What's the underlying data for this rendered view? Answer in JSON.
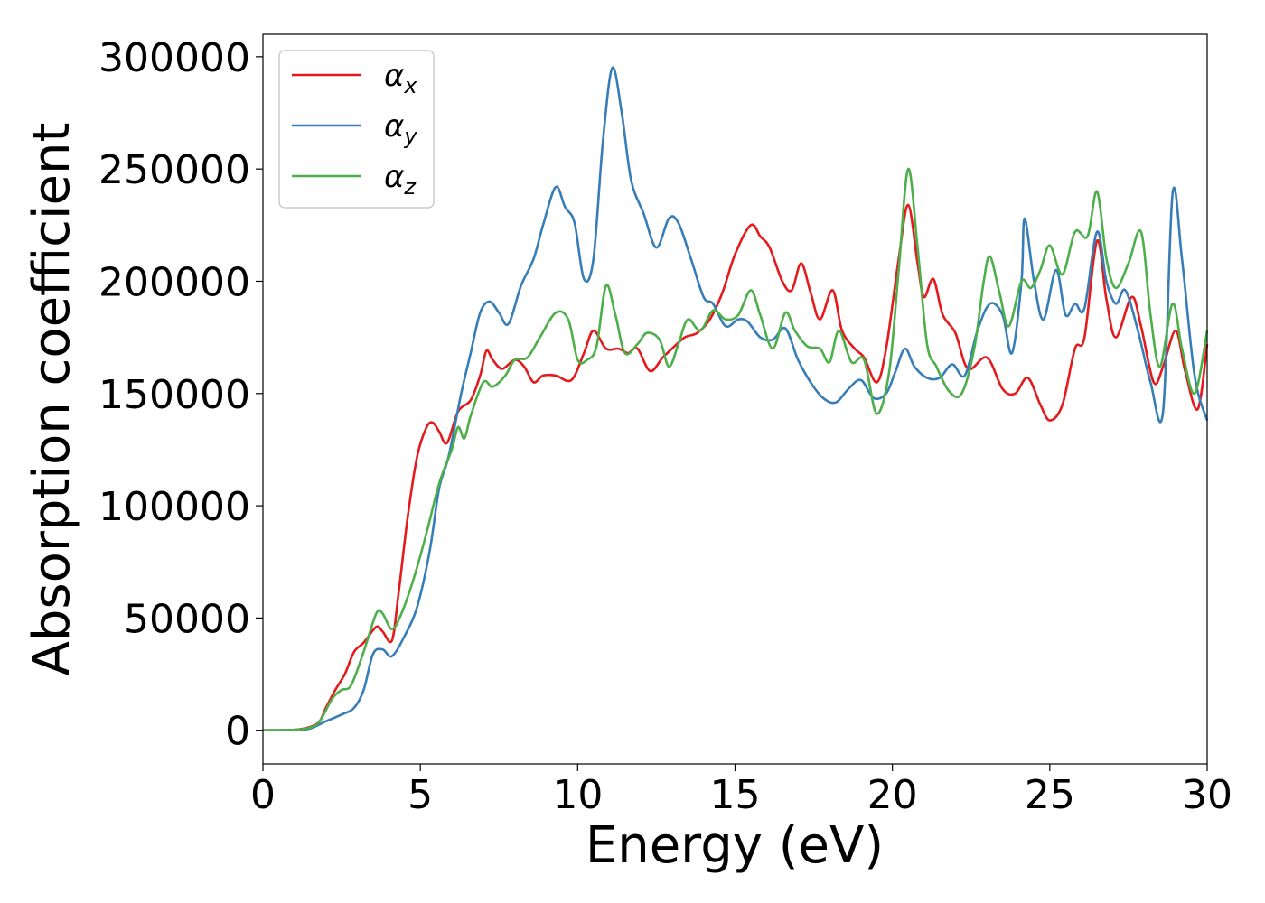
{
  "chart_data": {
    "type": "line",
    "xlabel": "Energy (eV)",
    "ylabel": "Absorption coefficient",
    "xlim": [
      0,
      30
    ],
    "ylim": [
      -15000,
      310000
    ],
    "xticks": [
      0,
      5,
      10,
      15,
      20,
      25,
      30
    ],
    "yticks": [
      0,
      50000,
      100000,
      150000,
      200000,
      250000,
      300000
    ],
    "grid": false,
    "legend_position": "top-left",
    "series": [
      {
        "name": "α",
        "subscript": "x",
        "color": "#e41a1c",
        "points": [
          [
            0,
            0
          ],
          [
            1,
            200
          ],
          [
            1.5,
            1500
          ],
          [
            1.8,
            4000
          ],
          [
            2,
            10000
          ],
          [
            2.3,
            18000
          ],
          [
            2.6,
            25000
          ],
          [
            2.9,
            35000
          ],
          [
            3.2,
            39000
          ],
          [
            3.6,
            46000
          ],
          [
            3.8,
            44000
          ],
          [
            4.1,
            40000
          ],
          [
            4.3,
            60000
          ],
          [
            4.6,
            95000
          ],
          [
            4.9,
            122000
          ],
          [
            5.2,
            135000
          ],
          [
            5.4,
            137000
          ],
          [
            5.6,
            133000
          ],
          [
            5.85,
            128000
          ],
          [
            6.2,
            142000
          ],
          [
            6.6,
            147000
          ],
          [
            6.9,
            158000
          ],
          [
            7.1,
            169000
          ],
          [
            7.3,
            165000
          ],
          [
            7.6,
            161000
          ],
          [
            8,
            165000
          ],
          [
            8.3,
            162000
          ],
          [
            8.6,
            155000
          ],
          [
            8.9,
            158000
          ],
          [
            9.3,
            158000
          ],
          [
            9.8,
            156000
          ],
          [
            10.2,
            168000
          ],
          [
            10.5,
            178000
          ],
          [
            10.9,
            170000
          ],
          [
            11.3,
            170000
          ],
          [
            11.6,
            168000
          ],
          [
            11.9,
            170000
          ],
          [
            12.3,
            160000
          ],
          [
            12.7,
            166000
          ],
          [
            13,
            170000
          ],
          [
            13.4,
            175000
          ],
          [
            13.8,
            177000
          ],
          [
            14.2,
            183000
          ],
          [
            14.6,
            195000
          ],
          [
            15,
            212000
          ],
          [
            15.5,
            225000
          ],
          [
            15.8,
            220000
          ],
          [
            16.1,
            215000
          ],
          [
            16.5,
            200000
          ],
          [
            16.8,
            196000
          ],
          [
            17.1,
            208000
          ],
          [
            17.4,
            195000
          ],
          [
            17.7,
            183000
          ],
          [
            18.1,
            196000
          ],
          [
            18.4,
            178000
          ],
          [
            18.8,
            170000
          ],
          [
            19.1,
            166000
          ],
          [
            19.5,
            155000
          ],
          [
            19.8,
            170000
          ],
          [
            20.2,
            210000
          ],
          [
            20.5,
            234000
          ],
          [
            20.8,
            208000
          ],
          [
            21,
            193000
          ],
          [
            21.3,
            201000
          ],
          [
            21.6,
            185000
          ],
          [
            22,
            177000
          ],
          [
            22.4,
            161000
          ],
          [
            23,
            166000
          ],
          [
            23.5,
            152000
          ],
          [
            23.9,
            150000
          ],
          [
            24.3,
            157000
          ],
          [
            24.7,
            145000
          ],
          [
            25,
            138000
          ],
          [
            25.4,
            145000
          ],
          [
            25.8,
            170000
          ],
          [
            26.1,
            175000
          ],
          [
            26.5,
            218000
          ],
          [
            26.8,
            192000
          ],
          [
            27.1,
            175000
          ],
          [
            27.6,
            193000
          ],
          [
            27.9,
            180000
          ],
          [
            28.3,
            155000
          ],
          [
            28.6,
            162000
          ],
          [
            29,
            178000
          ],
          [
            29.3,
            160000
          ],
          [
            29.7,
            143000
          ],
          [
            30,
            172000
          ]
        ]
      },
      {
        "name": "α",
        "subscript": "y",
        "color": "#377eb8",
        "points": [
          [
            0,
            0
          ],
          [
            1,
            100
          ],
          [
            1.5,
            800
          ],
          [
            2,
            4000
          ],
          [
            2.5,
            7000
          ],
          [
            2.9,
            10000
          ],
          [
            3.2,
            18000
          ],
          [
            3.5,
            34000
          ],
          [
            3.8,
            36000
          ],
          [
            4.1,
            33000
          ],
          [
            4.5,
            42000
          ],
          [
            4.9,
            55000
          ],
          [
            5.3,
            80000
          ],
          [
            5.6,
            108000
          ],
          [
            5.9,
            122000
          ],
          [
            6.3,
            150000
          ],
          [
            6.6,
            168000
          ],
          [
            6.9,
            186000
          ],
          [
            7.2,
            191000
          ],
          [
            7.5,
            186000
          ],
          [
            7.8,
            181000
          ],
          [
            8.2,
            198000
          ],
          [
            8.6,
            210000
          ],
          [
            8.9,
            225000
          ],
          [
            9.3,
            242000
          ],
          [
            9.6,
            233000
          ],
          [
            9.9,
            226000
          ],
          [
            10.2,
            201000
          ],
          [
            10.5,
            210000
          ],
          [
            10.8,
            262000
          ],
          [
            11.1,
            295000
          ],
          [
            11.4,
            275000
          ],
          [
            11.7,
            245000
          ],
          [
            12.1,
            230000
          ],
          [
            12.5,
            215000
          ],
          [
            12.9,
            228000
          ],
          [
            13.2,
            226000
          ],
          [
            13.6,
            210000
          ],
          [
            14,
            193000
          ],
          [
            14.3,
            190000
          ],
          [
            14.7,
            180000
          ],
          [
            15.1,
            183000
          ],
          [
            15.4,
            182000
          ],
          [
            15.8,
            175000
          ],
          [
            16.2,
            174000
          ],
          [
            16.6,
            179000
          ],
          [
            17,
            165000
          ],
          [
            17.4,
            155000
          ],
          [
            17.8,
            148000
          ],
          [
            18.2,
            146000
          ],
          [
            18.6,
            152000
          ],
          [
            19,
            156000
          ],
          [
            19.4,
            148000
          ],
          [
            19.8,
            150000
          ],
          [
            20.1,
            160000
          ],
          [
            20.4,
            170000
          ],
          [
            20.7,
            162000
          ],
          [
            21.1,
            157000
          ],
          [
            21.5,
            157000
          ],
          [
            21.9,
            163000
          ],
          [
            22.3,
            158000
          ],
          [
            22.7,
            178000
          ],
          [
            23.1,
            190000
          ],
          [
            23.5,
            185000
          ],
          [
            23.8,
            168000
          ],
          [
            24.1,
            200000
          ],
          [
            24.2,
            228000
          ],
          [
            24.5,
            200000
          ],
          [
            24.8,
            183000
          ],
          [
            25.2,
            205000
          ],
          [
            25.5,
            185000
          ],
          [
            25.8,
            190000
          ],
          [
            26.1,
            188000
          ],
          [
            26.5,
            222000
          ],
          [
            26.8,
            200000
          ],
          [
            27.1,
            190000
          ],
          [
            27.4,
            196000
          ],
          [
            27.8,
            178000
          ],
          [
            28.2,
            155000
          ],
          [
            28.6,
            142000
          ],
          [
            28.9,
            239000
          ],
          [
            29.2,
            210000
          ],
          [
            29.6,
            158000
          ],
          [
            30,
            138000
          ]
        ]
      },
      {
        "name": "α",
        "subscript": "z",
        "color": "#4daf4a",
        "points": [
          [
            0,
            0
          ],
          [
            1,
            200
          ],
          [
            1.5,
            1200
          ],
          [
            1.8,
            4000
          ],
          [
            2.2,
            14000
          ],
          [
            2.5,
            18000
          ],
          [
            2.8,
            20000
          ],
          [
            3.2,
            35000
          ],
          [
            3.6,
            52000
          ],
          [
            3.8,
            52000
          ],
          [
            4.1,
            45000
          ],
          [
            4.4,
            52000
          ],
          [
            4.8,
            68000
          ],
          [
            5.2,
            88000
          ],
          [
            5.6,
            110000
          ],
          [
            6,
            125000
          ],
          [
            6.2,
            135000
          ],
          [
            6.4,
            130000
          ],
          [
            6.6,
            140000
          ],
          [
            7,
            155000
          ],
          [
            7.3,
            153000
          ],
          [
            7.7,
            158000
          ],
          [
            8,
            165000
          ],
          [
            8.4,
            166000
          ],
          [
            8.8,
            175000
          ],
          [
            9.3,
            186000
          ],
          [
            9.7,
            183000
          ],
          [
            10,
            165000
          ],
          [
            10.3,
            165000
          ],
          [
            10.6,
            171000
          ],
          [
            10.9,
            198000
          ],
          [
            11.2,
            185000
          ],
          [
            11.5,
            168000
          ],
          [
            11.9,
            172000
          ],
          [
            12.2,
            177000
          ],
          [
            12.6,
            174000
          ],
          [
            12.9,
            162000
          ],
          [
            13.2,
            172000
          ],
          [
            13.5,
            183000
          ],
          [
            13.9,
            178000
          ],
          [
            14.3,
            187000
          ],
          [
            14.7,
            183000
          ],
          [
            15.1,
            185000
          ],
          [
            15.5,
            196000
          ],
          [
            15.8,
            185000
          ],
          [
            16.2,
            170000
          ],
          [
            16.6,
            186000
          ],
          [
            16.9,
            178000
          ],
          [
            17.3,
            171000
          ],
          [
            17.7,
            170000
          ],
          [
            18,
            164000
          ],
          [
            18.3,
            178000
          ],
          [
            18.7,
            164000
          ],
          [
            19.1,
            165000
          ],
          [
            19.5,
            141000
          ],
          [
            19.9,
            160000
          ],
          [
            20.2,
            205000
          ],
          [
            20.5,
            250000
          ],
          [
            20.8,
            215000
          ],
          [
            21.1,
            172000
          ],
          [
            21.4,
            162000
          ],
          [
            21.8,
            151000
          ],
          [
            22.2,
            150000
          ],
          [
            22.6,
            170000
          ],
          [
            22.9,
            200000
          ],
          [
            23.1,
            211000
          ],
          [
            23.4,
            195000
          ],
          [
            23.7,
            180000
          ],
          [
            24.1,
            200000
          ],
          [
            24.4,
            197000
          ],
          [
            24.7,
            205000
          ],
          [
            25,
            216000
          ],
          [
            25.4,
            203000
          ],
          [
            25.8,
            222000
          ],
          [
            26.2,
            220000
          ],
          [
            26.5,
            240000
          ],
          [
            26.8,
            210000
          ],
          [
            27.1,
            197000
          ],
          [
            27.5,
            208000
          ],
          [
            27.9,
            222000
          ],
          [
            28.2,
            185000
          ],
          [
            28.5,
            162000
          ],
          [
            28.9,
            190000
          ],
          [
            29.2,
            170000
          ],
          [
            29.6,
            150000
          ],
          [
            30,
            178000
          ]
        ]
      }
    ]
  }
}
